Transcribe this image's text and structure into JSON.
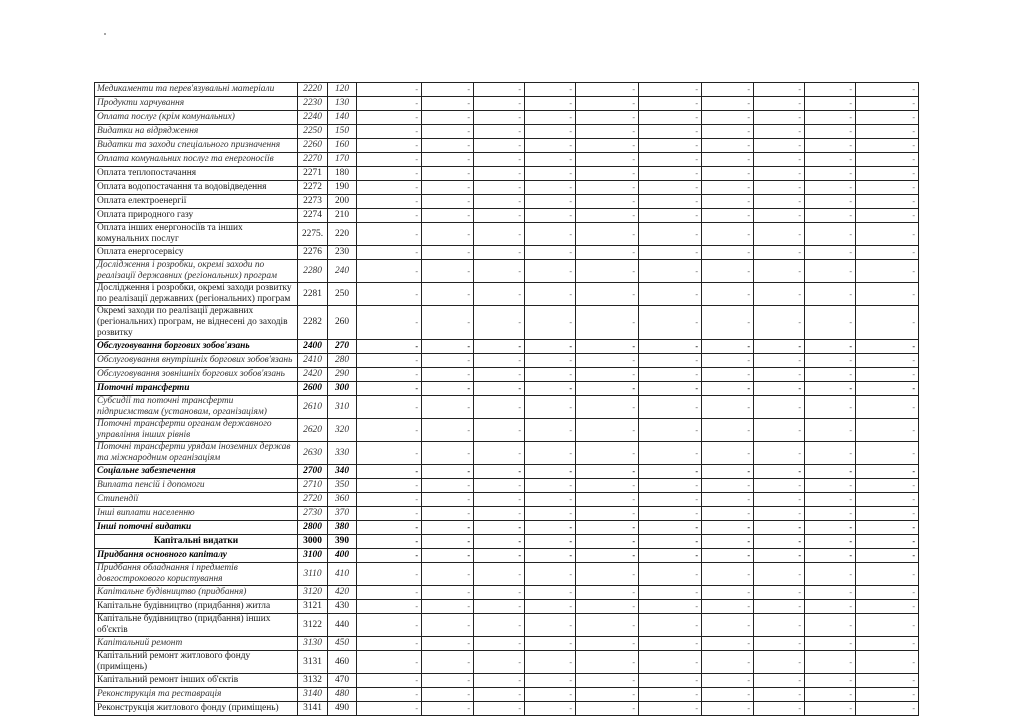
{
  "table": {
    "rows": [
      {
        "name": "Медикаменти та перев'язувальні матеріали",
        "code": "2220",
        "row": "120",
        "style": "italic"
      },
      {
        "name": "Продукти харчування",
        "code": "2230",
        "row": "130",
        "style": "italic"
      },
      {
        "name": "Оплата послуг (крім комунальних)",
        "code": "2240",
        "row": "140",
        "style": "italic"
      },
      {
        "name": "Видатки на відрядження",
        "code": "2250",
        "row": "150",
        "style": "italic"
      },
      {
        "name": "Видатки та заходи спеціального призначення",
        "code": "2260",
        "row": "160",
        "style": "italic"
      },
      {
        "name": "Оплата комунальних послуг та енергоносіїв",
        "code": "2270",
        "row": "170",
        "style": "italic"
      },
      {
        "name": "Оплата теплопостачання",
        "code": "2271",
        "row": "180",
        "style": "normal"
      },
      {
        "name": "Оплата водопостачання  та водовідведення",
        "code": "2272",
        "row": "190",
        "style": "normal"
      },
      {
        "name": "Оплата електроенергії",
        "code": "2273",
        "row": "200",
        "style": "normal"
      },
      {
        "name": "Оплата природного газу",
        "code": "2274",
        "row": "210",
        "style": "normal"
      },
      {
        "name": "Оплата інших енергоносіїв та інших комунальних послуг",
        "code": "2275.",
        "row": "220",
        "style": "normal"
      },
      {
        "name": "Оплата енергосервісу",
        "code": "2276",
        "row": "230",
        "style": "normal"
      },
      {
        "name": "Дослідження і розробки, окремі заходи по реалізації державних (регіональних) програм",
        "code": "2280",
        "row": "240",
        "style": "italic"
      },
      {
        "name": "Дослідження і розробки, окремі заходи розвитку по реалізації державних (регіональних) програм",
        "code": "2281",
        "row": "250",
        "style": "normal"
      },
      {
        "name": "Окремі заходи по реалізації державних (регіональних) програм, не віднесені до заходів розвитку",
        "code": "2282",
        "row": "260",
        "style": "normal"
      },
      {
        "name": "Обслуговування боргових зобов'язань",
        "code": "2400",
        "row": "270",
        "style": "bolditalic"
      },
      {
        "name": "Обслуговування внутрішніх боргових зобов'язань",
        "code": "2410",
        "row": "280",
        "style": "italic"
      },
      {
        "name": "Обслуговування зовнішніх боргових зобов'язань",
        "code": "2420",
        "row": "290",
        "style": "italic"
      },
      {
        "name": "Поточні трансферти",
        "code": "2600",
        "row": "300",
        "style": "bolditalic"
      },
      {
        "name": "Субсидії та поточні трансферти підприємствам (установам, організаціям)",
        "code": "2610",
        "row": "310",
        "style": "italic"
      },
      {
        "name": "Поточні трансферти органам державного управління інших рівнів",
        "code": "2620",
        "row": "320",
        "style": "italic"
      },
      {
        "name": "Поточні трансферти  урядам іноземних держав та міжнародним організаціям",
        "code": "2630",
        "row": "330",
        "style": "italic"
      },
      {
        "name": "Соціальне забезпечення",
        "code": "2700",
        "row": "340",
        "style": "bolditalic"
      },
      {
        "name": "Виплата пенсій і допомоги",
        "code": "2710",
        "row": "350",
        "style": "italic"
      },
      {
        "name": "Стипендії",
        "code": "2720",
        "row": "360",
        "style": "italic"
      },
      {
        "name": "Інші виплати населенню",
        "code": "2730",
        "row": "370",
        "style": "italic"
      },
      {
        "name": "Інші поточні видатки",
        "code": "2800",
        "row": "380",
        "style": "bolditalic"
      },
      {
        "name": "Капітальні видатки",
        "code": "3000",
        "row": "390",
        "style": "boldcenter"
      },
      {
        "name": "Придбання основного капіталу",
        "code": "3100",
        "row": "400",
        "style": "bolditalic"
      },
      {
        "name": "Придбання обладнання і предметів довгострокового користування",
        "code": "3110",
        "row": "410",
        "style": "italic"
      },
      {
        "name": "Капітальне будівництво (придбання)",
        "code": "3120",
        "row": "420",
        "style": "italic"
      },
      {
        "name": "Капітальне будівництво (придбання) житла",
        "code": "3121",
        "row": "430",
        "style": "normal"
      },
      {
        "name": "Капітальне будівництво (придбання) інших об'єктів",
        "code": "3122",
        "row": "440",
        "style": "normal"
      },
      {
        "name": "Капітальний ремонт",
        "code": "3130",
        "row": "450",
        "style": "italic"
      },
      {
        "name": "Капітальний ремонт житлового фонду (приміщень)",
        "code": "3131",
        "row": "460",
        "style": "normal"
      },
      {
        "name": "Капітальний ремонт інших об'єктів",
        "code": "3132",
        "row": "470",
        "style": "normal"
      },
      {
        "name": "Реконструкція  та  реставрація",
        "code": "3140",
        "row": "480",
        "style": "italic"
      },
      {
        "name": "Реконструкція житлового фонду (приміщень)",
        "code": "3141",
        "row": "490",
        "style": "normal"
      }
    ],
    "empty_value": "-",
    "value_columns": 10
  }
}
